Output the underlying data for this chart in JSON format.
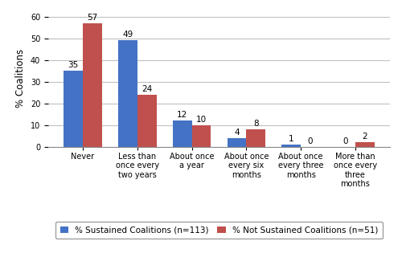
{
  "categories": [
    "Never",
    "Less than\nonce every\ntwo years",
    "About once\na year",
    "About once\nevery six\nmonths",
    "About once\nevery three\nmonths",
    "More than\nonce every\nthree\nmonths"
  ],
  "sustained": [
    35,
    49,
    12,
    4,
    1,
    0
  ],
  "not_sustained": [
    57,
    24,
    10,
    8,
    0,
    2
  ],
  "sustained_color": "#4472C4",
  "not_sustained_color": "#C0504D",
  "ylabel": "% Coalitions",
  "ylim": [
    0,
    63
  ],
  "yticks": [
    0,
    10,
    20,
    30,
    40,
    50,
    60
  ],
  "legend_sustained": "% Sustained Coalitions (n=113)",
  "legend_not_sustained": "% Not Sustained Coalitions (n=51)",
  "bar_width": 0.35,
  "label_fontsize": 7.5,
  "tick_fontsize": 7,
  "ylabel_fontsize": 8.5,
  "legend_fontsize": 7.5,
  "background_color": "#ffffff",
  "grid_color": "#c0c0c0"
}
